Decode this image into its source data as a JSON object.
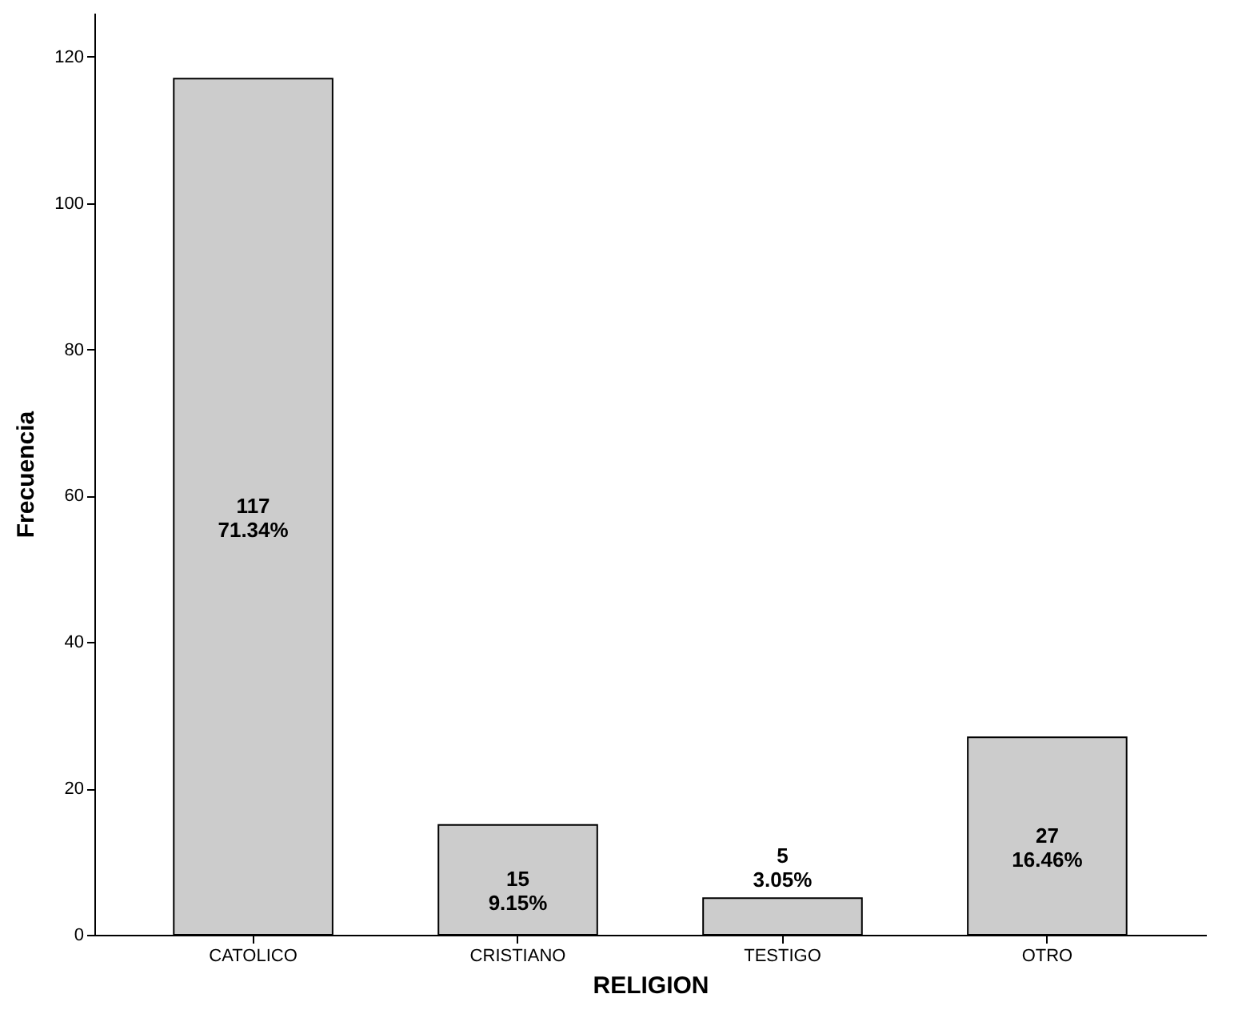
{
  "chart_data": {
    "type": "bar",
    "xlabel": "RELIGION",
    "ylabel": "Frecuencia",
    "categories": [
      "CATOLICO",
      "CRISTIANO",
      "TESTIGO",
      "OTRO"
    ],
    "values": [
      117,
      15,
      5,
      27
    ],
    "value_labels": [
      "117\n71.34%",
      "15\n9.15%",
      "5\n3.05%",
      "27\n16.46%"
    ],
    "color": "#cccccc",
    "ylim": [
      0,
      126
    ],
    "yticks": [
      0,
      20,
      40,
      60,
      80,
      100,
      120
    ],
    "grid": false
  }
}
